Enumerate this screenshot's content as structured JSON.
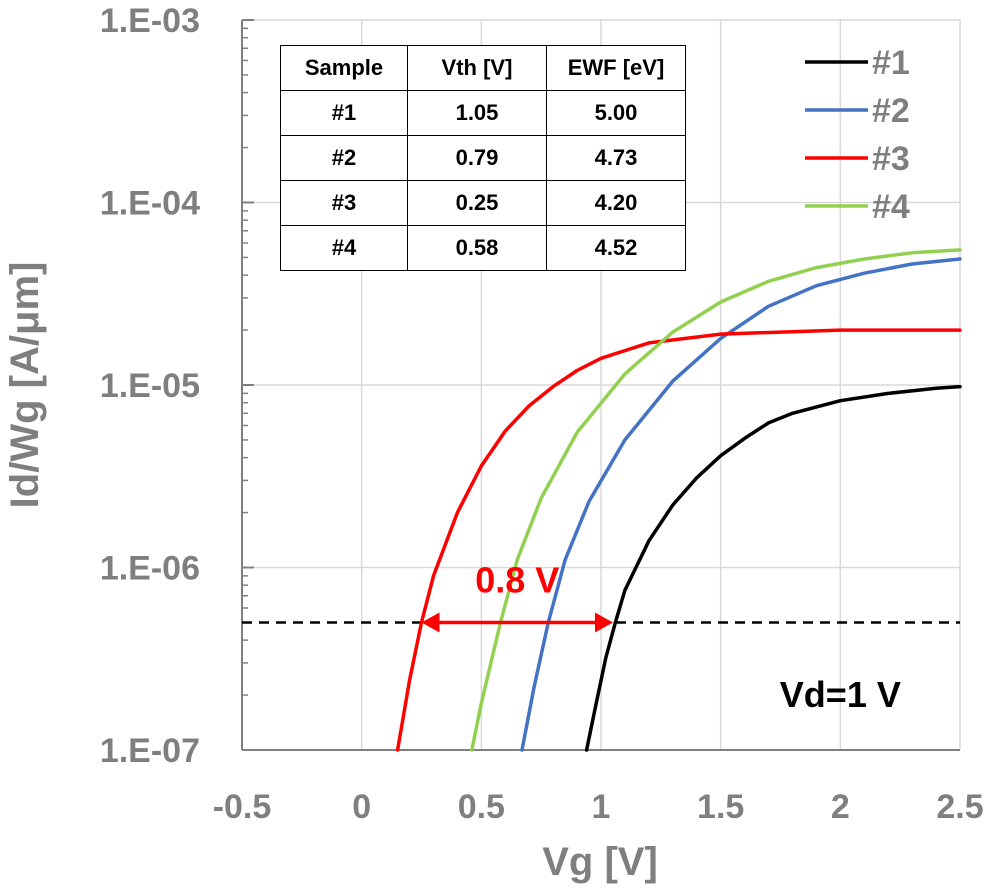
{
  "chart_data": {
    "type": "line",
    "xlabel": "Vg [V]",
    "ylabel": "Id/Wg [A/μm]",
    "xlim": [
      -0.5,
      2.5
    ],
    "ylim": [
      1e-07,
      0.001
    ],
    "yscale": "log",
    "grid": true,
    "x_ticks": [
      "-0.5",
      "0",
      "0.5",
      "1",
      "1.5",
      "2",
      "2.5"
    ],
    "x_tick_values": [
      -0.5,
      0,
      0.5,
      1,
      1.5,
      2,
      2.5
    ],
    "y_ticks": [
      "1.E-07",
      "1.E-06",
      "1.E-05",
      "1.E-04",
      "1.E-03"
    ],
    "y_tick_values": [
      1e-07,
      1e-06,
      1e-05,
      0.0001,
      0.001
    ],
    "legend_position": "top-right",
    "series": [
      {
        "name": "#1",
        "color": "#000000",
        "x": [
          0.94,
          0.98,
          1.02,
          1.06,
          1.1,
          1.2,
          1.3,
          1.4,
          1.5,
          1.6,
          1.7,
          1.8,
          2.0,
          2.2,
          2.4,
          2.5
        ],
        "y": [
          1e-07,
          1.8e-07,
          3.2e-07,
          5e-07,
          7.5e-07,
          1.4e-06,
          2.2e-06,
          3.1e-06,
          4.1e-06,
          5.1e-06,
          6.2e-06,
          7e-06,
          8.2e-06,
          9e-06,
          9.6e-06,
          9.8e-06
        ]
      },
      {
        "name": "#2",
        "color": "#4472c4",
        "x": [
          0.67,
          0.72,
          0.78,
          0.85,
          0.95,
          1.1,
          1.3,
          1.5,
          1.7,
          1.9,
          2.1,
          2.3,
          2.5
        ],
        "y": [
          1e-07,
          2.2e-07,
          5e-07,
          1.1e-06,
          2.3e-06,
          5e-06,
          1.05e-05,
          1.8e-05,
          2.7e-05,
          3.5e-05,
          4.1e-05,
          4.6e-05,
          4.9e-05
        ]
      },
      {
        "name": "#3",
        "color": "#ff0000",
        "x": [
          0.15,
          0.2,
          0.25,
          0.3,
          0.4,
          0.5,
          0.6,
          0.7,
          0.8,
          0.9,
          1.0,
          1.2,
          1.5,
          2.0,
          2.5
        ],
        "y": [
          1e-07,
          2.4e-07,
          5e-07,
          9e-07,
          2e-06,
          3.6e-06,
          5.6e-06,
          7.7e-06,
          9.8e-06,
          1.2e-05,
          1.4e-05,
          1.7e-05,
          1.9e-05,
          2e-05,
          2e-05
        ]
      },
      {
        "name": "#4",
        "color": "#92d050",
        "x": [
          0.46,
          0.5,
          0.58,
          0.65,
          0.75,
          0.9,
          1.1,
          1.3,
          1.5,
          1.7,
          1.9,
          2.1,
          2.3,
          2.5
        ],
        "y": [
          1e-07,
          1.8e-07,
          5e-07,
          1.1e-06,
          2.4e-06,
          5.5e-06,
          1.15e-05,
          1.95e-05,
          2.85e-05,
          3.7e-05,
          4.4e-05,
          4.9e-05,
          5.3e-05,
          5.5e-05
        ]
      }
    ],
    "reference_line": {
      "y": 5e-07,
      "style": "dashed",
      "color": "#000000"
    },
    "annotations": {
      "delta": {
        "label": "0.8 V",
        "from_x": 0.25,
        "to_x": 1.05,
        "y": 5e-07,
        "color": "#ff0000"
      },
      "condition": {
        "label": "Vd=1 V",
        "x": 2.0,
        "y": 2e-07
      }
    },
    "table": {
      "headers": [
        "Sample",
        "Vth [V]",
        "EWF [eV]"
      ],
      "rows": [
        [
          "#1",
          "1.05",
          "5.00"
        ],
        [
          "#2",
          "0.79",
          "4.73"
        ],
        [
          "#3",
          "0.25",
          "4.20"
        ],
        [
          "#4",
          "0.58",
          "4.52"
        ]
      ]
    }
  }
}
